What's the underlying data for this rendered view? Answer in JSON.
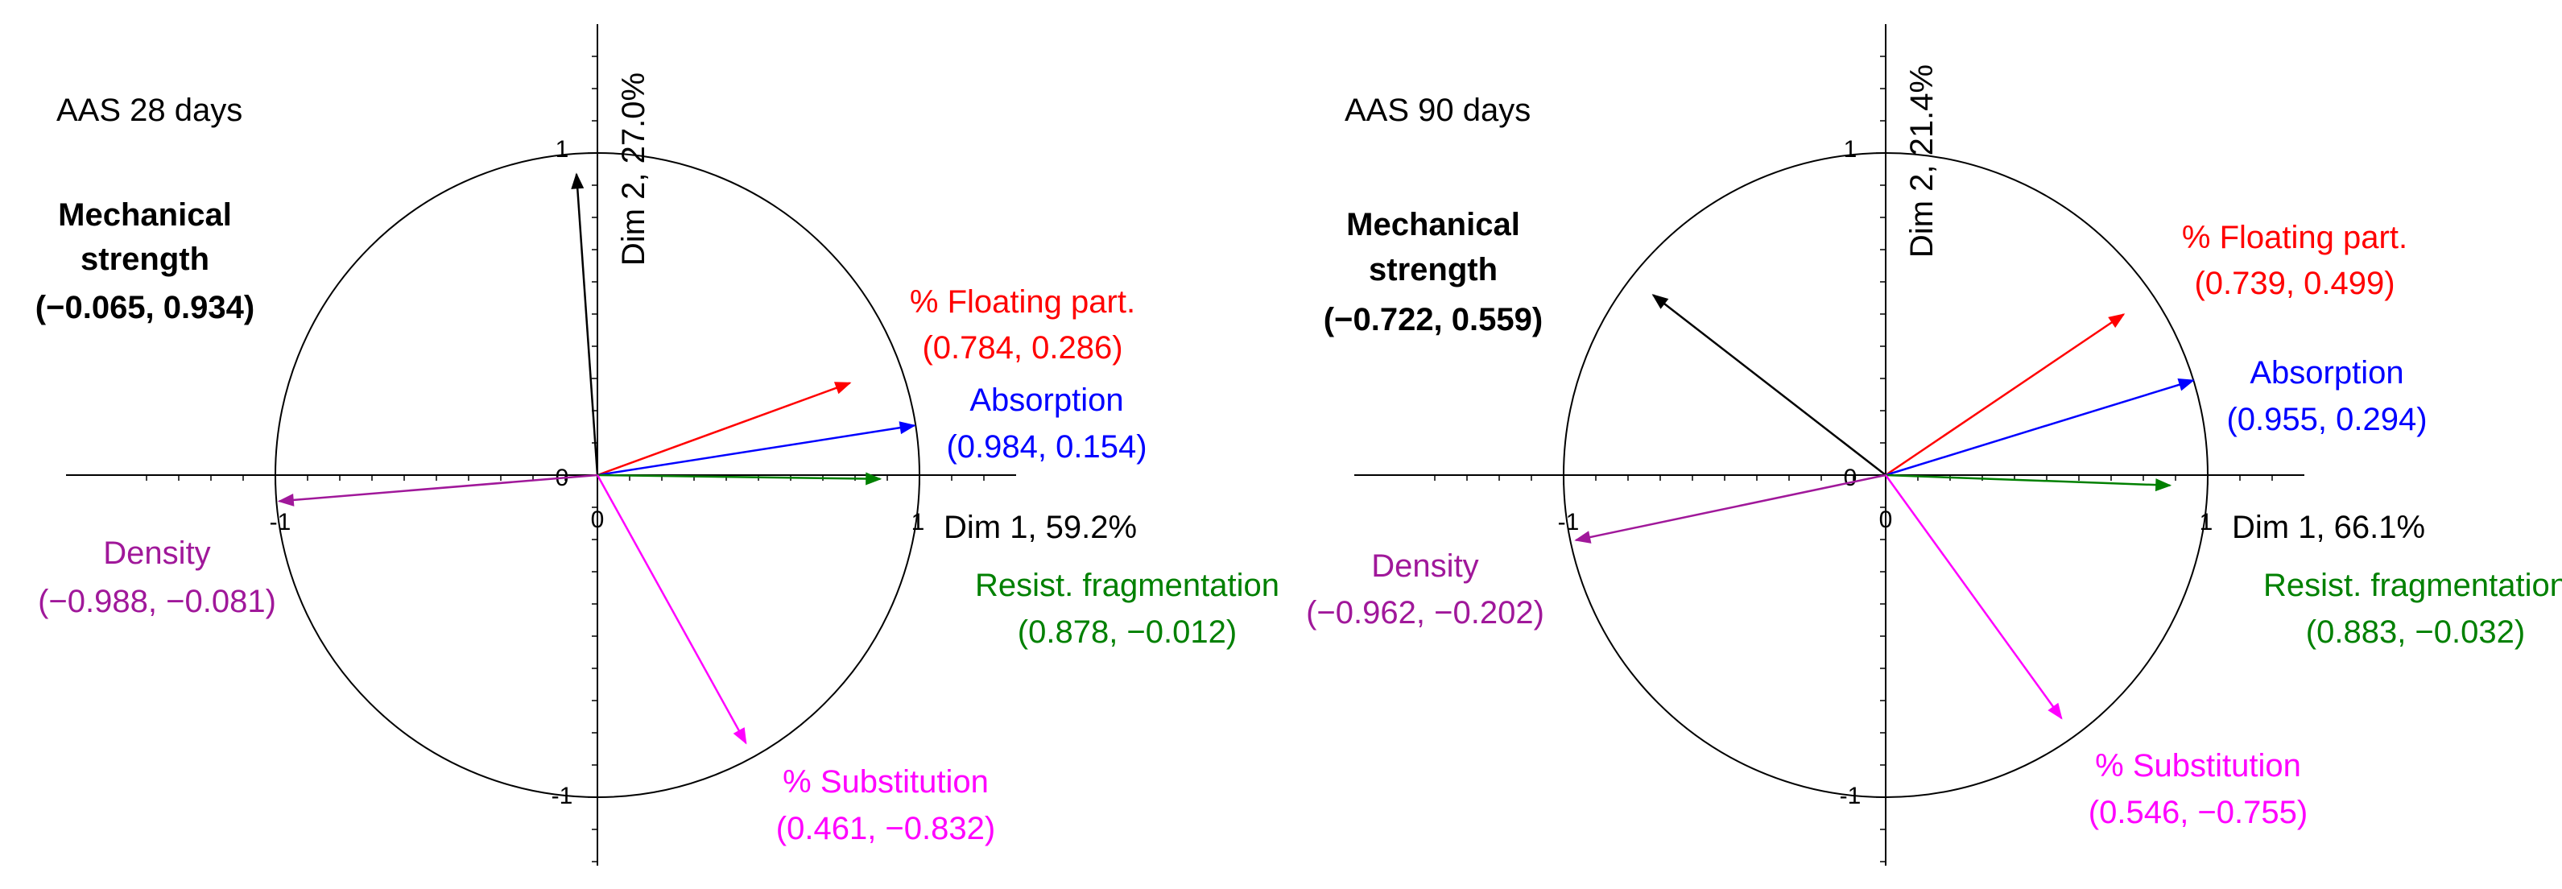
{
  "chart_data": [
    {
      "type": "scatter",
      "title": "AAS 28 days",
      "xlabel": "Dim 1, 59.2%",
      "ylabel": "Dim 2, 27.0%",
      "xlim": [
        -1,
        1
      ],
      "ylim": [
        -1,
        1
      ],
      "x_ticks": [
        "-1",
        "0",
        "1"
      ],
      "y_ticks": [
        "1",
        "0",
        "-1"
      ],
      "vectors": [
        {
          "name": "Mechanical\nstrength",
          "coord": "(−0.065, 0.934)",
          "x": -0.065,
          "y": 0.934,
          "color": "#000000",
          "bold": true
        },
        {
          "name": "% Floating part.",
          "coord": "(0.784, 0.286)",
          "x": 0.784,
          "y": 0.286,
          "color": "#ff0000"
        },
        {
          "name": "Absorption",
          "coord": "(0.984, 0.154)",
          "x": 0.984,
          "y": 0.154,
          "color": "#0000ff"
        },
        {
          "name": "Resist. fragmentation",
          "coord": "(0.878, −0.012)",
          "x": 0.878,
          "y": -0.012,
          "color": "#008000"
        },
        {
          "name": "% Substitution",
          "coord": "(0.461, −0.832)",
          "x": 0.461,
          "y": -0.832,
          "color": "#ff00ff"
        },
        {
          "name": "Density",
          "coord": "(−0.988, −0.081)",
          "x": -0.988,
          "y": -0.081,
          "color": "#a0189a"
        }
      ]
    },
    {
      "type": "scatter",
      "title": "AAS 90 days",
      "xlabel": "Dim 1, 66.1%",
      "ylabel": "Dim 2, 21.4%",
      "xlim": [
        -1,
        1
      ],
      "ylim": [
        -1,
        1
      ],
      "x_ticks": [
        "-1",
        "0",
        "1"
      ],
      "y_ticks": [
        "1",
        "0",
        "-1"
      ],
      "vectors": [
        {
          "name": "Mechanical\nstrength",
          "coord": "(−0.722, 0.559)",
          "x": -0.722,
          "y": 0.559,
          "color": "#000000",
          "bold": true
        },
        {
          "name": "% Floating part.",
          "coord": "(0.739, 0.499)",
          "x": 0.739,
          "y": 0.499,
          "color": "#ff0000"
        },
        {
          "name": "Absorption",
          "coord": "(0.955, 0.294)",
          "x": 0.955,
          "y": 0.294,
          "color": "#0000ff"
        },
        {
          "name": "Resist. fragmentation",
          "coord": "(0.883, −0.032)",
          "x": 0.883,
          "y": -0.032,
          "color": "#008000"
        },
        {
          "name": "% Substitution",
          "coord": "(0.546, −0.755)",
          "x": 0.546,
          "y": -0.755,
          "color": "#ff00ff"
        },
        {
          "name": "Density",
          "coord": "(−0.962, −0.202)",
          "x": -0.962,
          "y": -0.202,
          "color": "#a0189a"
        }
      ]
    }
  ]
}
